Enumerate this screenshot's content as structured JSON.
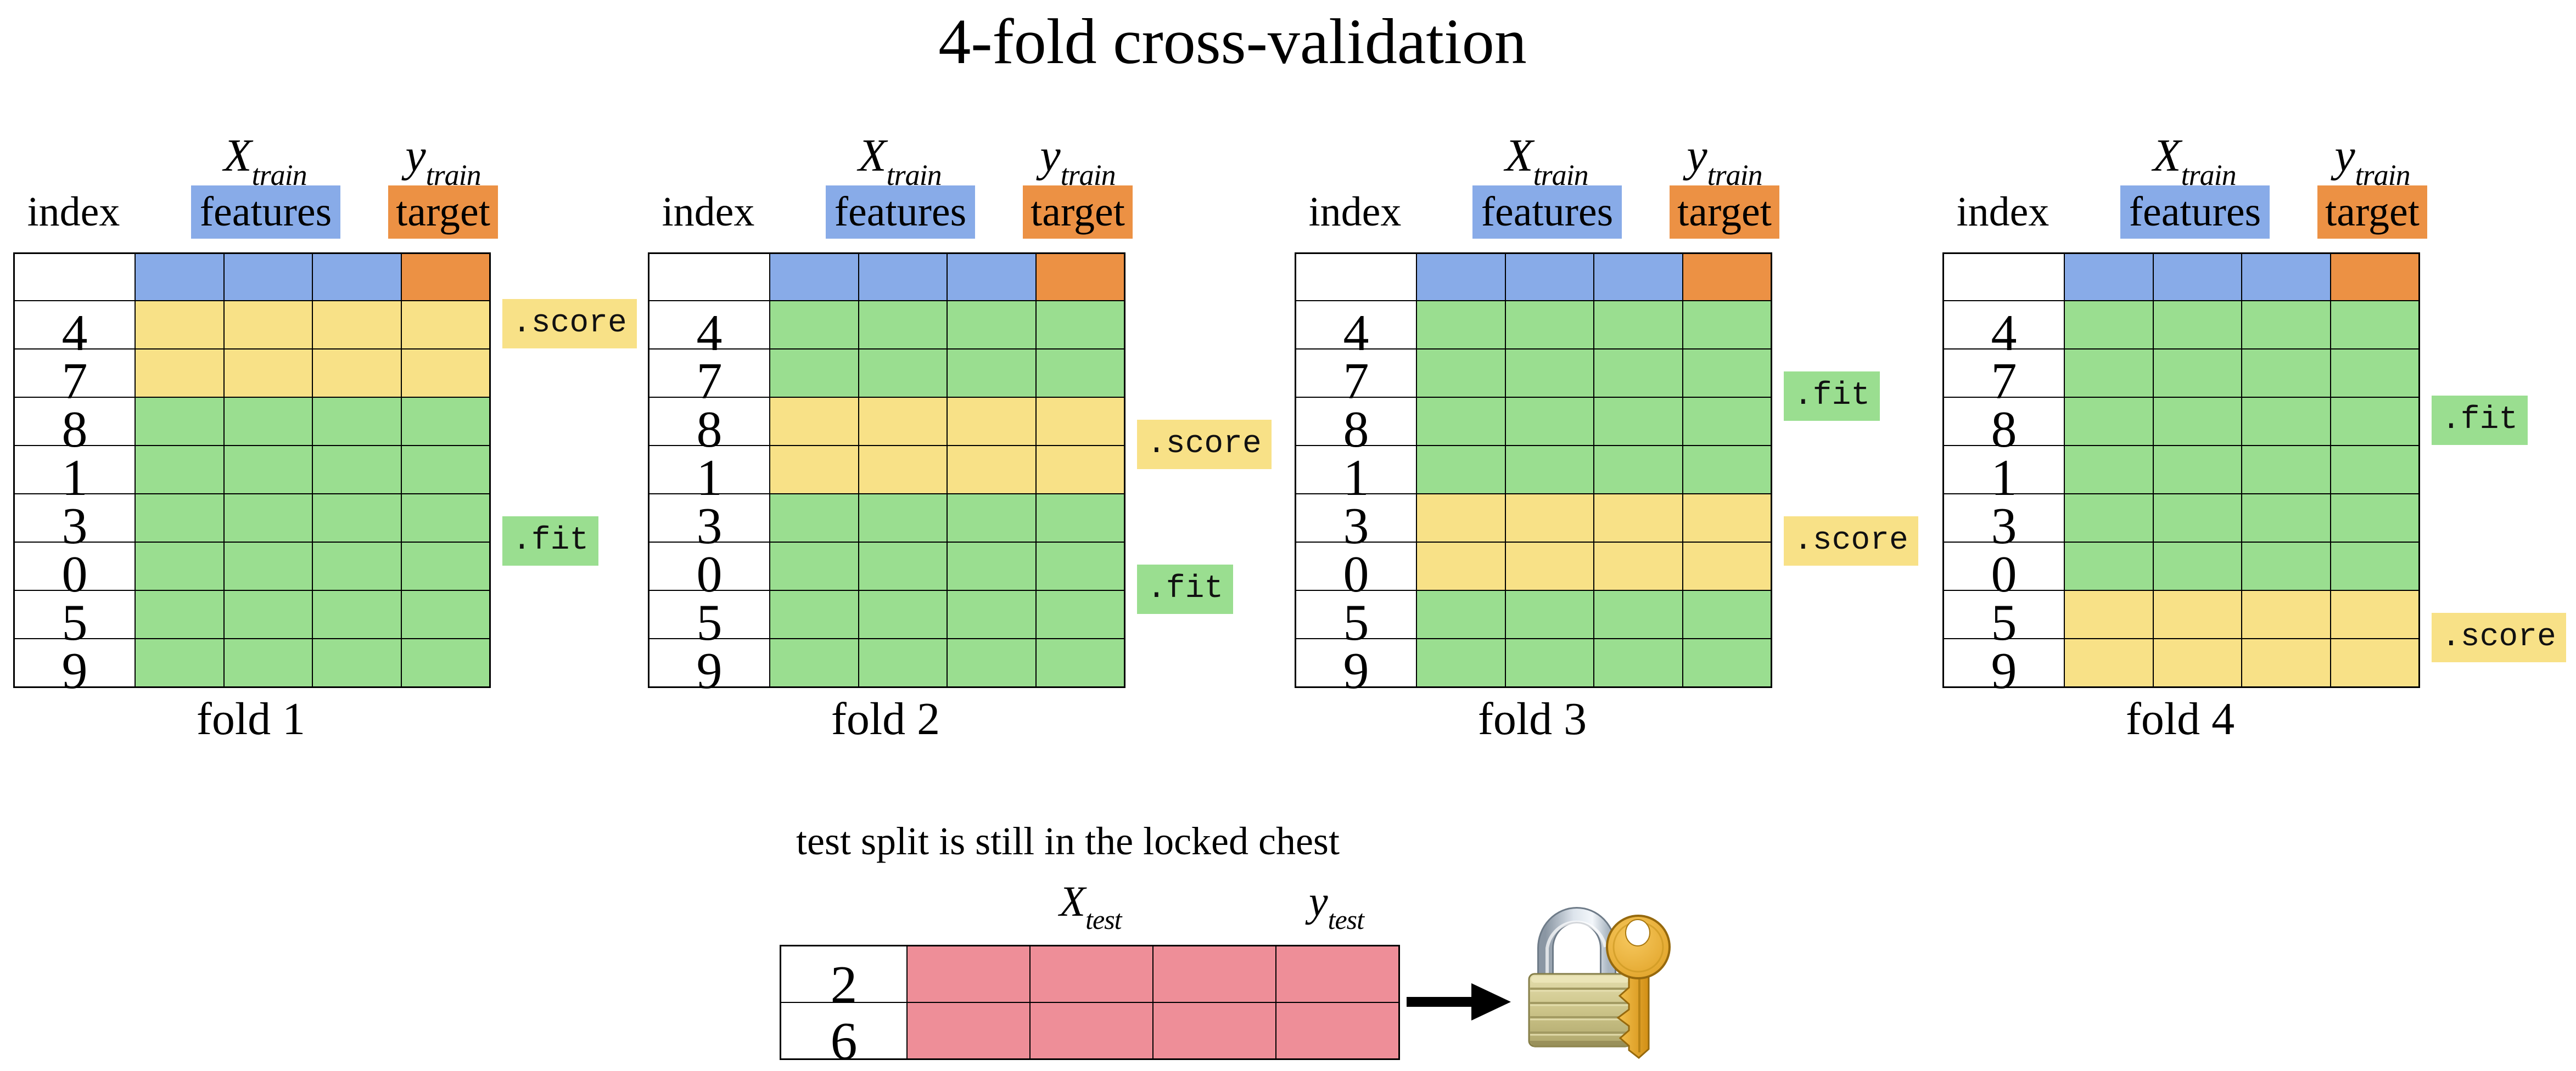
{
  "title": "4-fold cross-validation",
  "palette": {
    "features": "#88ABE8",
    "target": "#EC9144",
    "score": "#F8E187",
    "fit": "#9ADE90",
    "test": "#EE8E98",
    "line": "#000000",
    "lock_body": "#C9C183",
    "lock_shackle": "#C6D0DA",
    "key_gold": "#E9A82E"
  },
  "fold_header": {
    "index_label": "index",
    "x_main": "X",
    "x_sub": "train",
    "features_label": "features",
    "y_main": "y",
    "y_sub": "train",
    "target_label": "target"
  },
  "row_indices": [
    "4",
    "7",
    "8",
    "1",
    "3",
    "0",
    "5",
    "9"
  ],
  "folds": [
    {
      "caption": "fold 1",
      "score_label": ".score",
      "fit_label": ".fit",
      "row_colors": [
        "score",
        "score",
        "fit",
        "fit",
        "fit",
        "fit",
        "fit",
        "fit"
      ],
      "score_center": 0.5,
      "fit_center": 5.0
    },
    {
      "caption": "fold 2",
      "score_label": ".score",
      "fit_label": ".fit",
      "row_colors": [
        "fit",
        "fit",
        "score",
        "score",
        "fit",
        "fit",
        "fit",
        "fit"
      ],
      "score_center": 3.0,
      "fit_center": 6.0
    },
    {
      "caption": "fold 3",
      "score_label": ".score",
      "fit_label": ".fit",
      "row_colors": [
        "fit",
        "fit",
        "fit",
        "fit",
        "score",
        "score",
        "fit",
        "fit"
      ],
      "score_center": 5.0,
      "fit_center": 2.0
    },
    {
      "caption": "fold 4",
      "score_label": ".score",
      "fit_label": ".fit",
      "row_colors": [
        "fit",
        "fit",
        "fit",
        "fit",
        "fit",
        "fit",
        "score",
        "score"
      ],
      "score_center": 7.0,
      "fit_center": 2.5
    }
  ],
  "test_section": {
    "caption": "test split is still in the locked chest",
    "x_main": "X",
    "x_sub": "test",
    "y_main": "y",
    "y_sub": "test",
    "row_indices": [
      "2",
      "6"
    ],
    "arrow_icon": "right-arrow",
    "lock_icon": "padlock-with-key"
  }
}
